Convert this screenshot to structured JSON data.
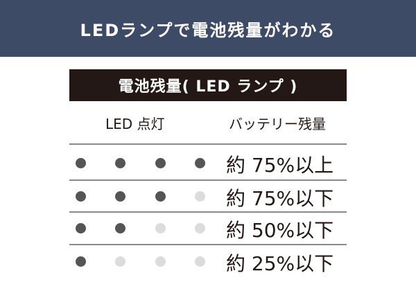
{
  "banner": {
    "title": "LEDランプで電池残量がわかる",
    "color": "#3d4b66"
  },
  "table": {
    "title": "電池残量( LED ランプ )",
    "headers": {
      "led": "LED 点灯",
      "level": "バッテリー残量"
    },
    "rows": [
      {
        "leds_on": 4,
        "leds_total": 4,
        "level": "約 75%以上"
      },
      {
        "leds_on": 3,
        "leds_total": 4,
        "level": "約 75%以下"
      },
      {
        "leds_on": 2,
        "leds_total": 4,
        "level": "約 50%以下"
      },
      {
        "leds_on": 1,
        "leds_total": 4,
        "level": "約 25%以下"
      }
    ],
    "colors": {
      "led_on": "#555555",
      "led_off": "#dcdcdc",
      "title_bar": "#231815"
    }
  }
}
